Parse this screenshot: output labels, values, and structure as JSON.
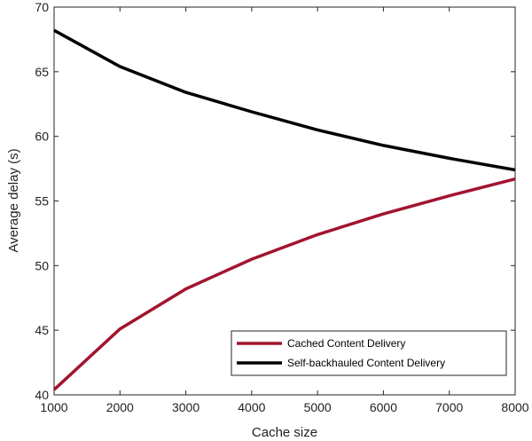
{
  "chart_data": {
    "type": "line",
    "xlabel": "Cache size",
    "ylabel": "Average delay (s)",
    "xlim": [
      1000,
      8000
    ],
    "ylim": [
      40,
      70
    ],
    "xticks": [
      1000,
      2000,
      3000,
      4000,
      5000,
      6000,
      7000,
      8000
    ],
    "yticks": [
      40,
      45,
      50,
      55,
      60,
      65,
      70
    ],
    "grid": false,
    "legend_position": "bottom-right",
    "x": [
      1000,
      2000,
      3000,
      4000,
      5000,
      6000,
      7000,
      8000
    ],
    "series": [
      {
        "name": "Cached Content Delivery",
        "color": "#a2142f",
        "values": [
          40.4,
          45.1,
          48.2,
          50.5,
          52.4,
          54.0,
          55.4,
          56.7
        ]
      },
      {
        "name": "Self-backhauled Content Delivery",
        "color": "#000000",
        "values": [
          68.2,
          65.4,
          63.4,
          61.9,
          60.5,
          59.3,
          58.3,
          57.4
        ]
      }
    ]
  }
}
